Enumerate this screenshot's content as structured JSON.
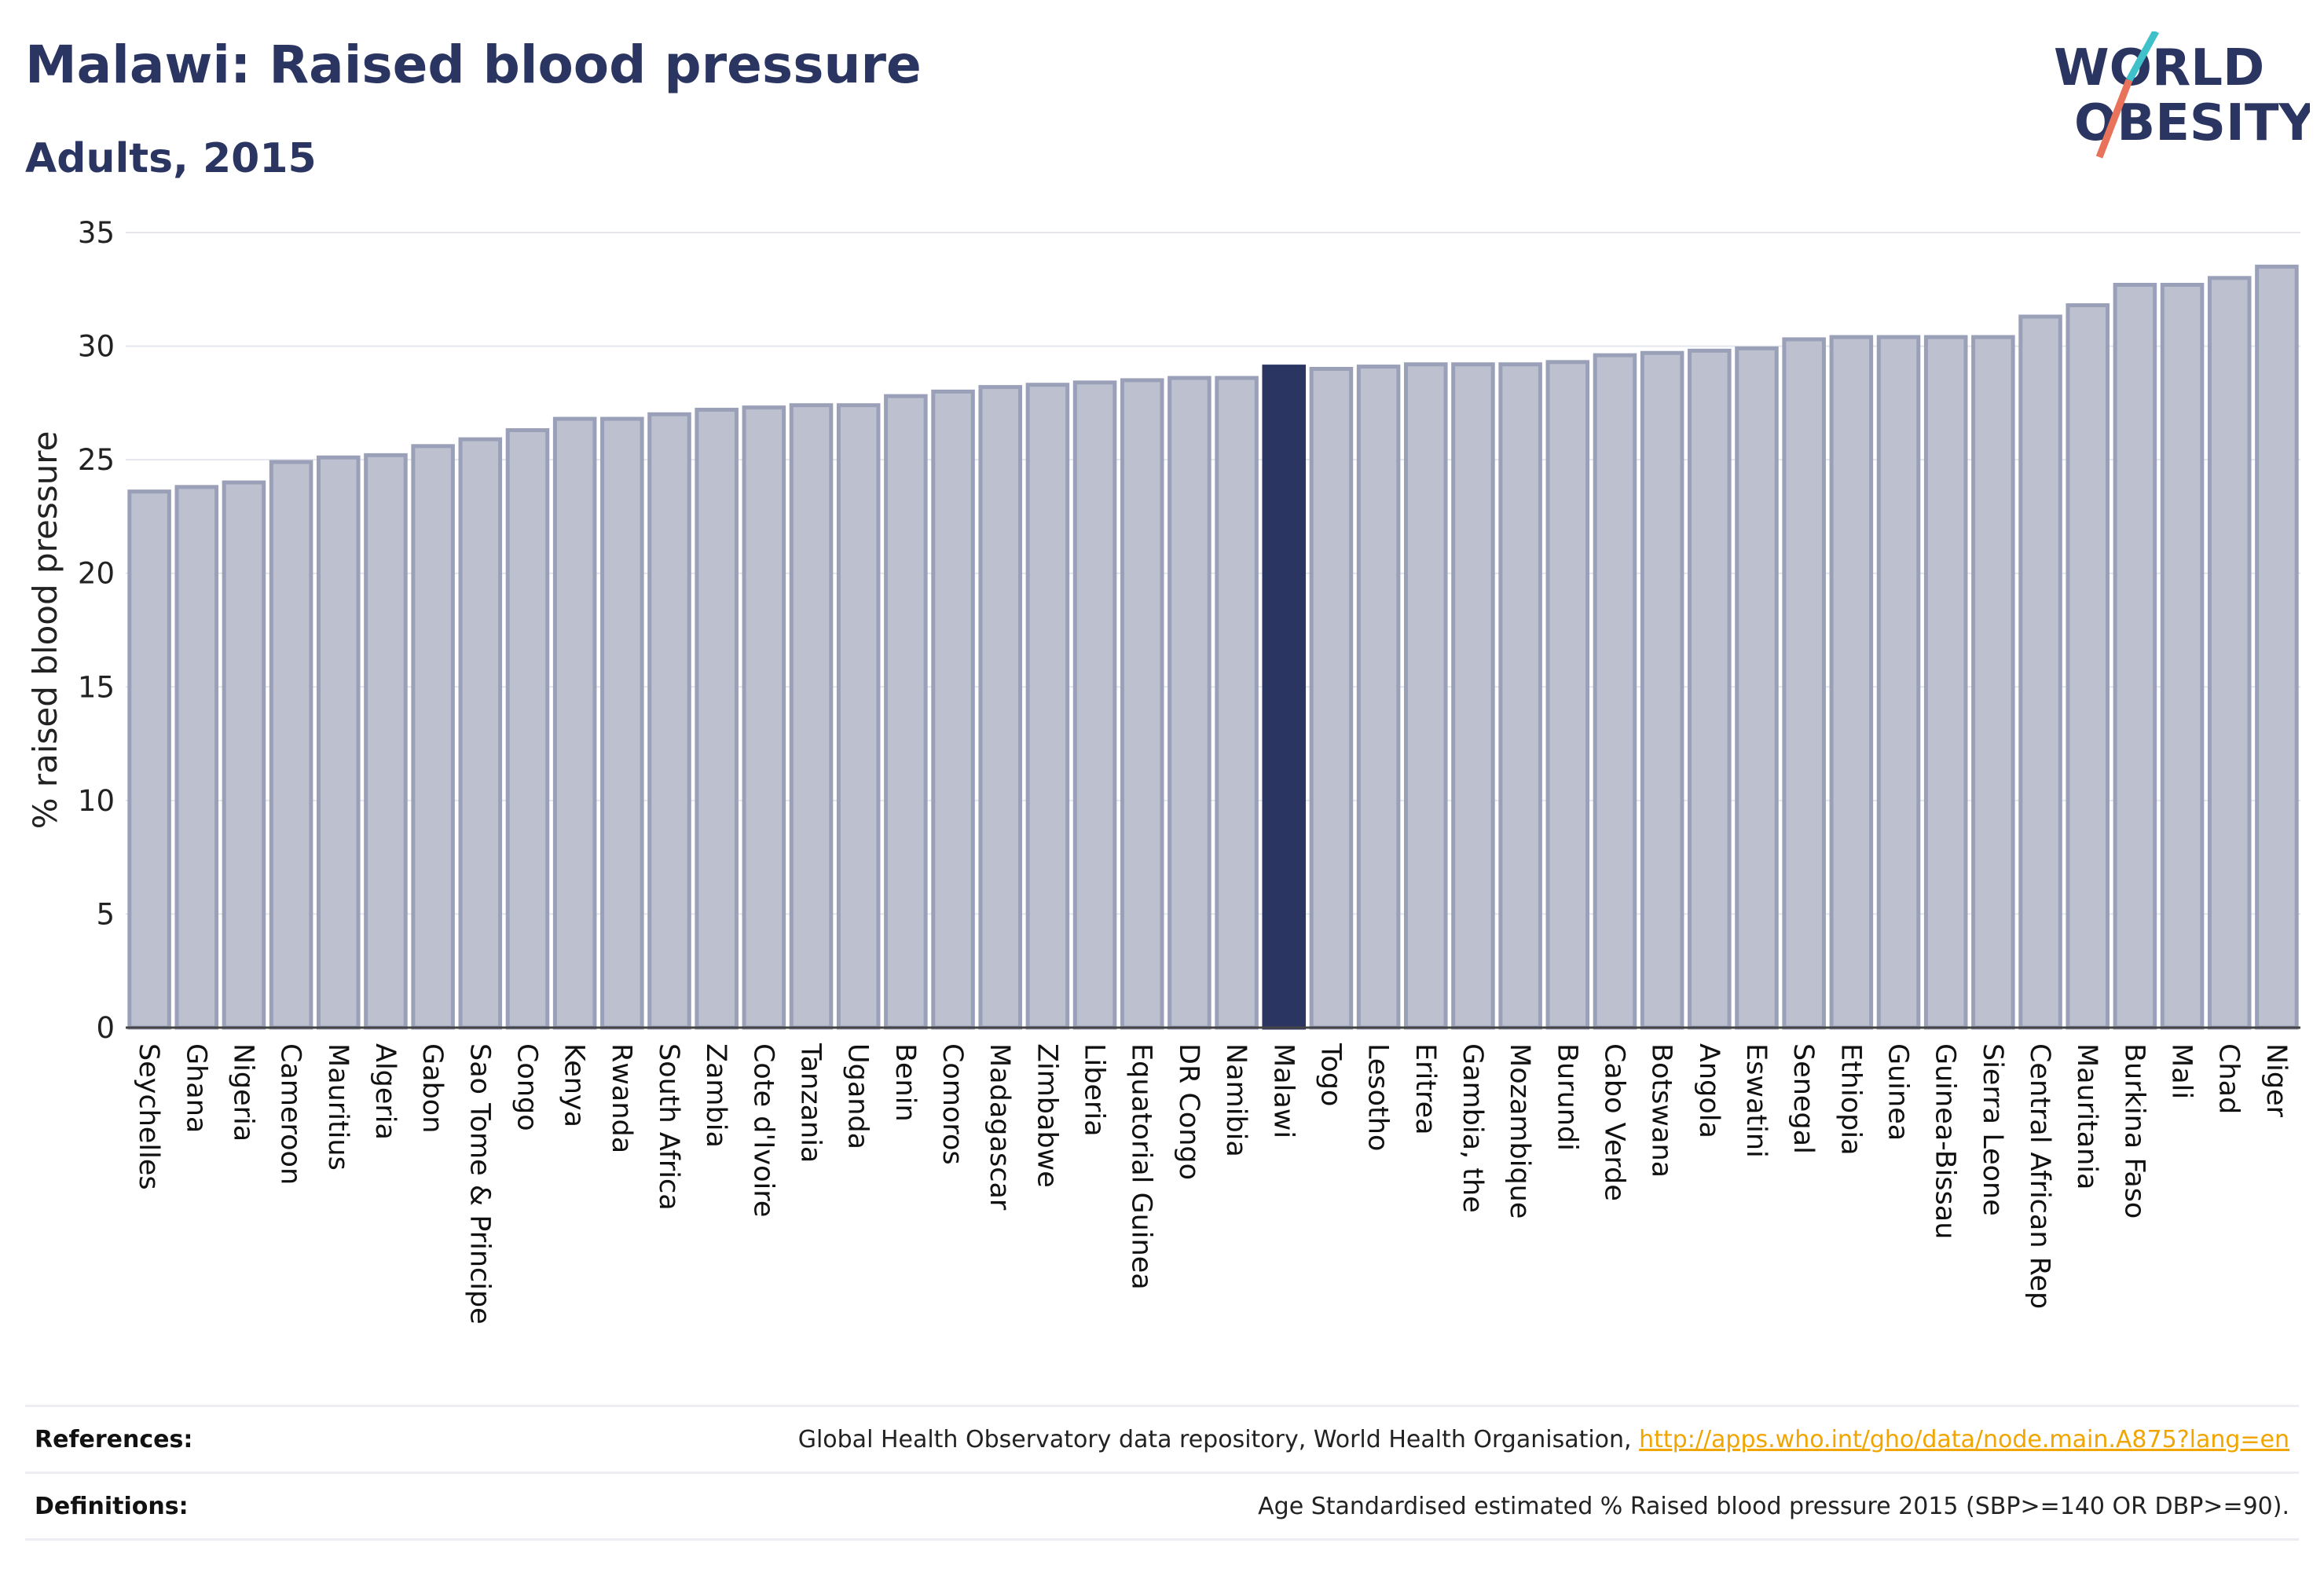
{
  "header": {
    "title": "Malawi: Raised blood pressure",
    "subtitle": "Adults, 2015"
  },
  "logo": {
    "line1": "WORLD",
    "line2": "OBESITY",
    "text_color": "#2b3561",
    "slash_colors": [
      "#3fc1c9",
      "#e8735a"
    ]
  },
  "chart_data": {
    "type": "bar",
    "title": "Malawi: Raised blood pressure",
    "subtitle": "Adults, 2015",
    "xlabel": "",
    "ylabel": "% raised blood pressure",
    "ylim": [
      0,
      35
    ],
    "yticks": [
      0,
      5,
      10,
      15,
      20,
      25,
      30,
      35
    ],
    "grid": true,
    "highlight": "Malawi",
    "colors": {
      "bar_fill": "#bcc0cf",
      "bar_stroke": "#9aa0b8",
      "highlight_fill": "#2b3561",
      "grid": "#e4e6ed",
      "zero_line": "#444444"
    },
    "categories": [
      "Seychelles",
      "Ghana",
      "Nigeria",
      "Cameroon",
      "Mauritius",
      "Algeria",
      "Gabon",
      "Sao Tome & Principe",
      "Congo",
      "Kenya",
      "Rwanda",
      "South Africa",
      "Zambia",
      "Cote d'Ivoire",
      "Tanzania",
      "Uganda",
      "Benin",
      "Comoros",
      "Madagascar",
      "Zimbabwe",
      "Liberia",
      "Equatorial Guinea",
      "DR Congo",
      "Namibia",
      "Malawi",
      "Togo",
      "Lesotho",
      "Eritrea",
      "Gambia, the",
      "Mozambique",
      "Burundi",
      "Cabo Verde",
      "Botswana",
      "Angola",
      "Eswatini",
      "Senegal",
      "Ethiopia",
      "Guinea",
      "Guinea-Bissau",
      "Sierra Leone",
      "Central African Rep",
      "Mauritania",
      "Burkina Faso",
      "Mali",
      "Chad",
      "Niger"
    ],
    "values": [
      23.6,
      23.8,
      24.0,
      24.9,
      25.1,
      25.2,
      25.6,
      25.9,
      26.3,
      26.8,
      26.8,
      27.0,
      27.2,
      27.3,
      27.4,
      27.4,
      27.8,
      28.0,
      28.2,
      28.3,
      28.4,
      28.5,
      28.6,
      28.6,
      29.1,
      29.0,
      29.1,
      29.2,
      29.2,
      29.2,
      29.3,
      29.6,
      29.7,
      29.8,
      29.9,
      30.3,
      30.4,
      30.4,
      30.4,
      30.4,
      31.3,
      31.8,
      32.7,
      32.7,
      33.0,
      33.5
    ]
  },
  "footer": {
    "references_label": "References:",
    "references_text": "Global Health Observatory data repository, World Health Organisation,",
    "references_link": "http://apps.who.int/gho/data/node.main.A875?lang=en",
    "definitions_label": "Definitions:",
    "definitions_text": "Age Standardised estimated % Raised blood pressure 2015 (SBP>=140 OR DBP>=90)."
  }
}
